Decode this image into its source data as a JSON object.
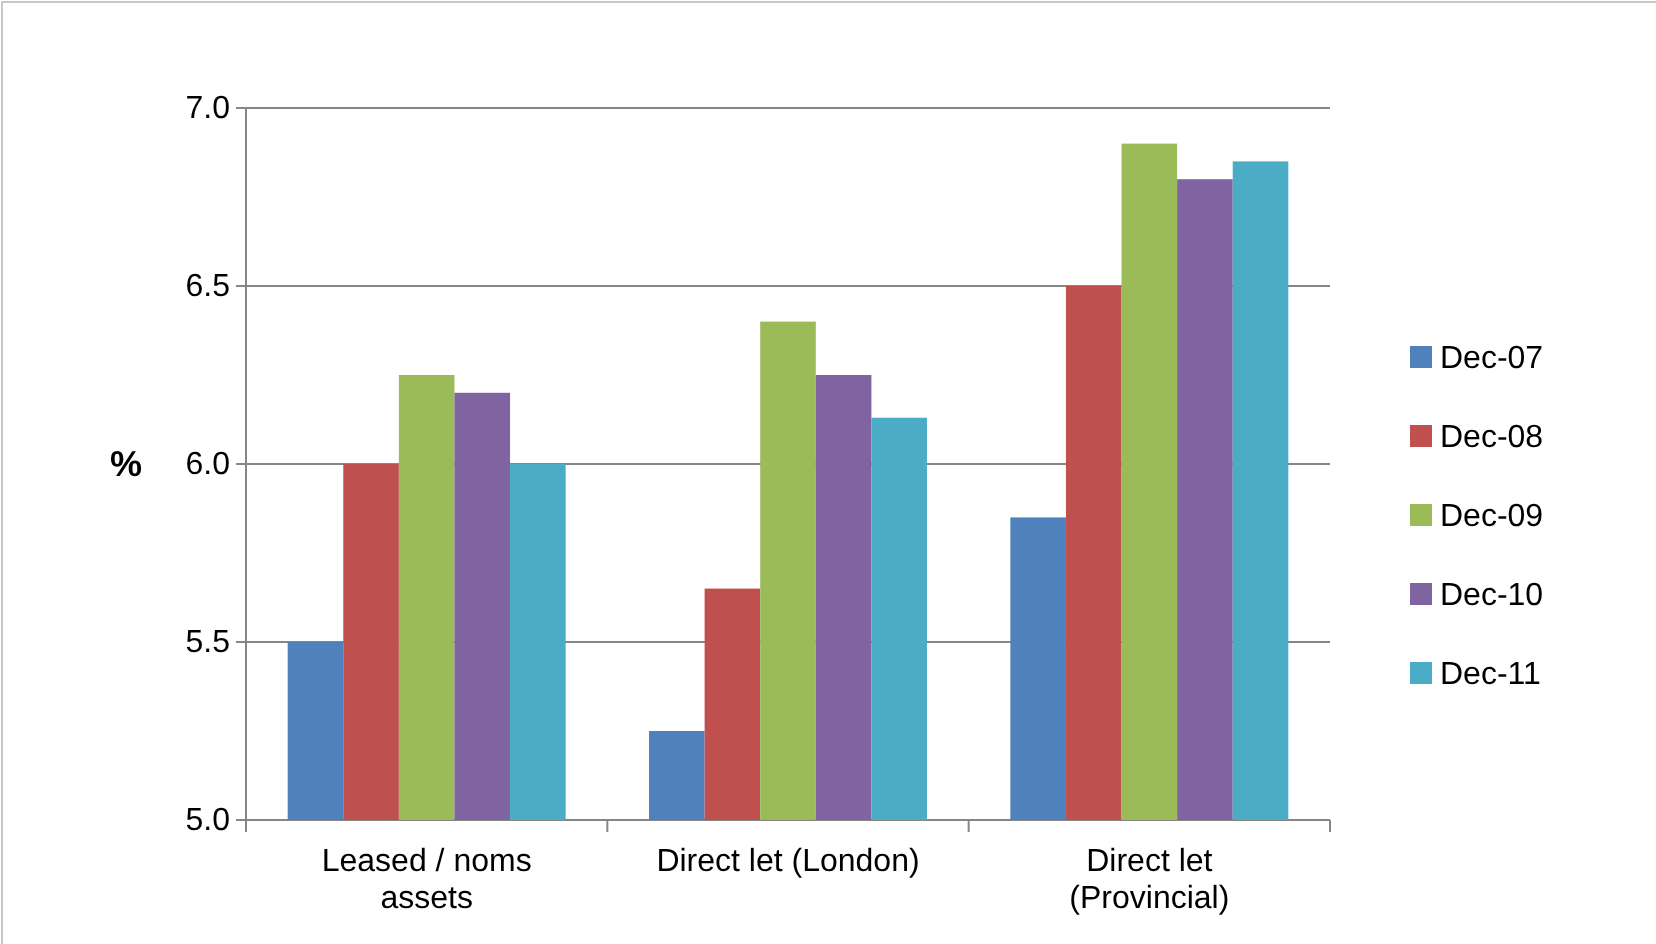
{
  "chart_data": {
    "type": "bar",
    "ylabel": "%",
    "categories": [
      "Leased / noms\nassets",
      "Direct let (London)",
      "Direct let\n(Provincial)"
    ],
    "series": [
      {
        "name": "Dec-07",
        "color": "#4f81bd",
        "values": [
          5.5,
          5.25,
          5.85
        ]
      },
      {
        "name": "Dec-08",
        "color": "#c0504d",
        "values": [
          6.0,
          5.65,
          6.5
        ]
      },
      {
        "name": "Dec-09",
        "color": "#9bbb59",
        "values": [
          6.25,
          6.4,
          6.9
        ]
      },
      {
        "name": "Dec-10",
        "color": "#8064a2",
        "values": [
          6.2,
          6.25,
          6.8
        ]
      },
      {
        "name": "Dec-11",
        "color": "#4bacc6",
        "values": [
          6.0,
          6.13,
          6.85
        ]
      }
    ],
    "ylim": [
      5.0,
      7.0
    ],
    "yticks": [
      {
        "value": 5.0,
        "label": "5.0"
      },
      {
        "value": 5.5,
        "label": "5.5"
      },
      {
        "value": 6.0,
        "label": "6.0"
      },
      {
        "value": 6.5,
        "label": "6.5"
      },
      {
        "value": 7.0,
        "label": "7.0"
      }
    ],
    "grid": "y",
    "legend": "right"
  }
}
